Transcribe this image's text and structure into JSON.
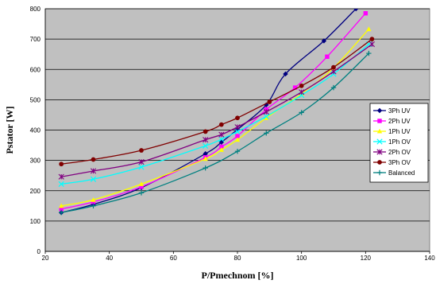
{
  "chart_data": {
    "type": "line",
    "title": "",
    "xlabel": "P/Pmechnom [%]",
    "ylabel": "Pstator [W]",
    "xlim": [
      20,
      140
    ],
    "ylim": [
      0,
      800
    ],
    "xticks": [
      20,
      40,
      60,
      80,
      100,
      120,
      140
    ],
    "yticks": [
      0,
      100,
      200,
      300,
      400,
      500,
      600,
      700,
      800
    ],
    "grid": "horizontal",
    "plot_background": "#c0c0c0",
    "legend_position": "right",
    "series": [
      {
        "name": "3Ph UV",
        "color": "#000080",
        "marker": "diamond",
        "x": [
          25,
          35,
          50,
          70,
          75,
          80,
          89,
          95,
          107,
          117
        ],
        "y": [
          128,
          155,
          210,
          322,
          360,
          402,
          483,
          585,
          694,
          800
        ]
      },
      {
        "name": "2Ph UV",
        "color": "#ff00ff",
        "marker": "square",
        "x": [
          25,
          35,
          50,
          70,
          75,
          80,
          89,
          98,
          108,
          120
        ],
        "y": [
          140,
          163,
          213,
          310,
          345,
          380,
          468,
          540,
          642,
          785
        ]
      },
      {
        "name": "1Ph UV",
        "color": "#ffff00",
        "marker": "triangle",
        "x": [
          25,
          35,
          50,
          70,
          75,
          80,
          89,
          100,
          110,
          121
        ],
        "y": [
          150,
          170,
          222,
          305,
          335,
          368,
          440,
          520,
          605,
          733
        ]
      },
      {
        "name": "1Ph OV",
        "color": "#00ffff",
        "marker": "x",
        "x": [
          25,
          35,
          50,
          70,
          75,
          80,
          89,
          100,
          110,
          121
        ],
        "y": [
          222,
          238,
          278,
          348,
          370,
          395,
          445,
          515,
          585,
          683
        ]
      },
      {
        "name": "2Ph OV",
        "color": "#800080",
        "marker": "asterisk",
        "x": [
          25,
          35,
          50,
          70,
          75,
          80,
          89,
          100,
          110,
          122
        ],
        "y": [
          246,
          265,
          295,
          368,
          385,
          410,
          460,
          525,
          593,
          683
        ]
      },
      {
        "name": "3Ph OV",
        "color": "#800000",
        "marker": "circle",
        "x": [
          25,
          35,
          50,
          70,
          75,
          80,
          90,
          100,
          110,
          122
        ],
        "y": [
          288,
          303,
          333,
          395,
          418,
          440,
          493,
          546,
          607,
          700
        ]
      },
      {
        "name": "Balanced",
        "color": "#008080",
        "marker": "plus",
        "x": [
          25,
          35,
          50,
          70,
          80,
          89,
          100,
          110,
          121
        ],
        "y": [
          128,
          150,
          193,
          275,
          330,
          390,
          458,
          540,
          653
        ]
      }
    ]
  }
}
